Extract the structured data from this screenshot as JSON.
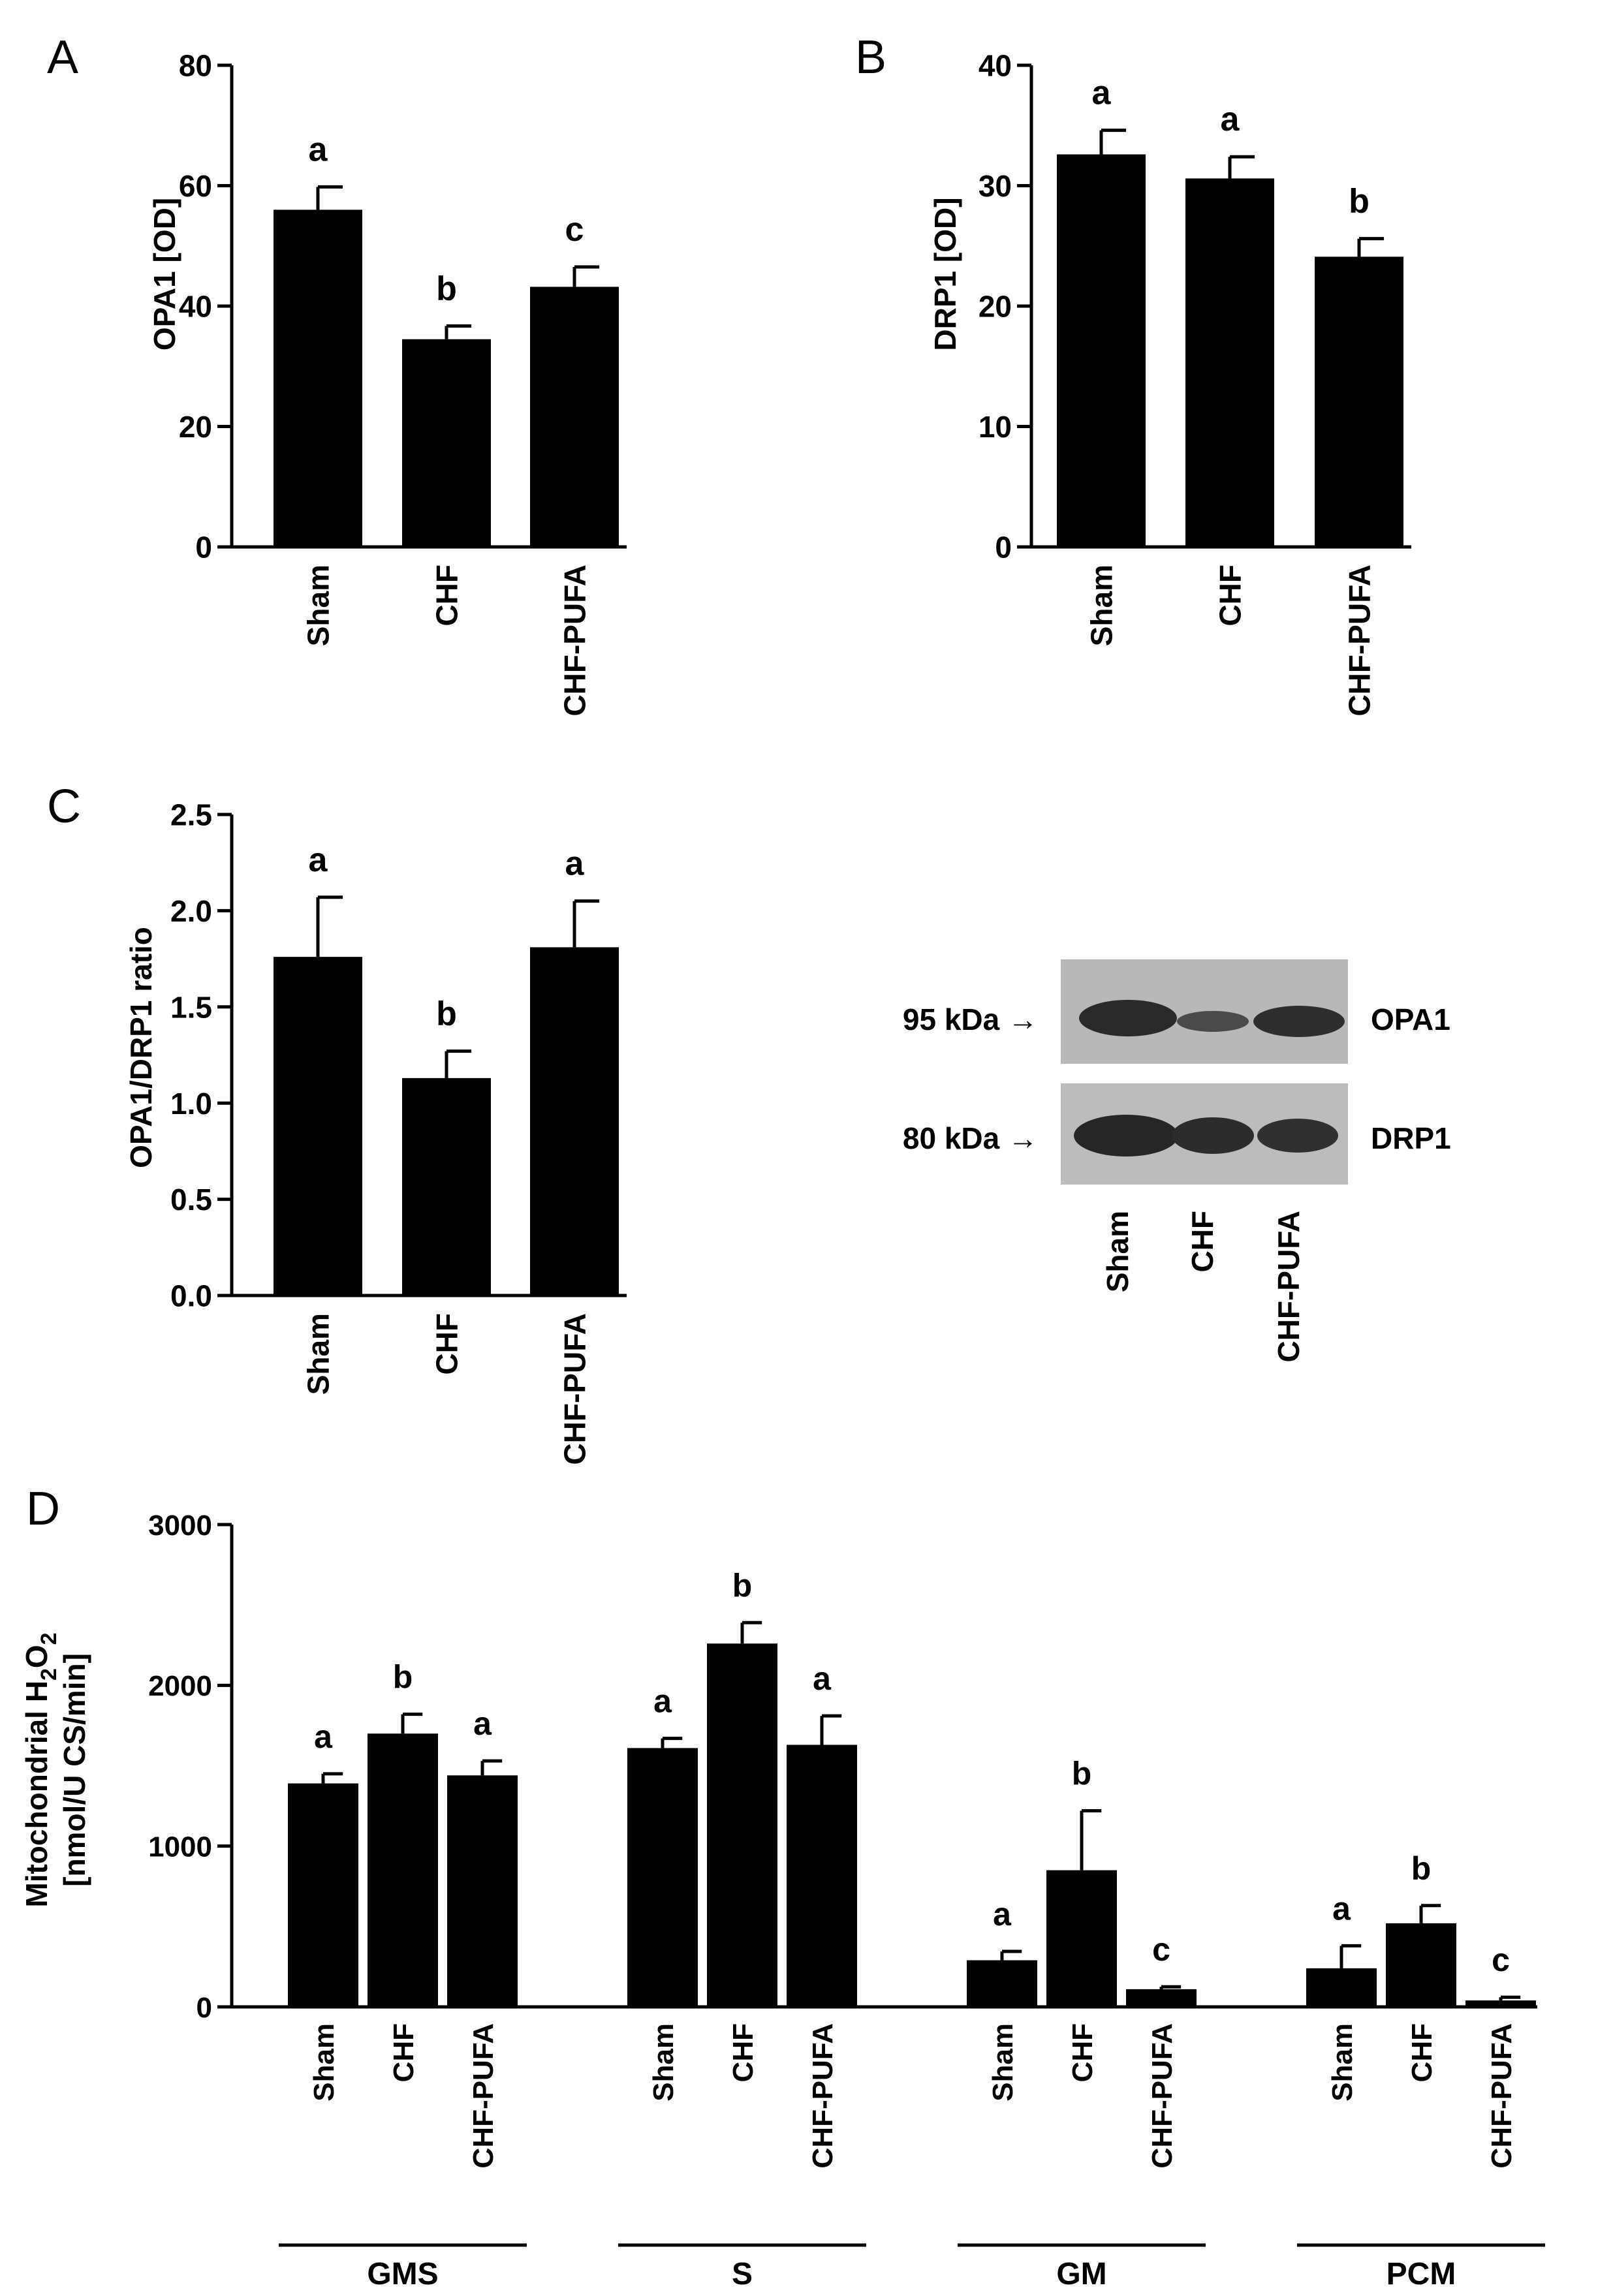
{
  "colors": {
    "bar": "#000000",
    "axis": "#000000",
    "background": "#ffffff",
    "blot_bg": "#b8b8b8",
    "band": "#2a2a2a"
  },
  "chart_data": [
    {
      "panel_label": "A",
      "type": "bar",
      "categories": [
        "Sham",
        "CHF",
        "CHF-PUFA"
      ],
      "values": [
        56,
        34.5,
        43.2
      ],
      "errors": [
        3.8,
        2.2,
        3.3
      ],
      "significance": [
        "a",
        "b",
        "c"
      ],
      "ylabel": "OPA1 [OD]",
      "ylim": [
        0,
        80
      ],
      "yticks": [
        "0",
        "20",
        "40",
        "60",
        "80"
      ],
      "grid": false
    },
    {
      "panel_label": "B",
      "type": "bar",
      "categories": [
        "Sham",
        "CHF",
        "CHF-PUFA"
      ],
      "values": [
        32.6,
        30.6,
        24.1
      ],
      "errors": [
        2.0,
        1.8,
        1.5
      ],
      "significance": [
        "a",
        "a",
        "b"
      ],
      "ylabel": "DRP1 [OD]",
      "ylim": [
        0,
        40
      ],
      "yticks": [
        "0",
        "10",
        "20",
        "30",
        "40"
      ],
      "grid": false
    },
    {
      "panel_label": "C",
      "type": "bar",
      "categories": [
        "Sham",
        "CHF",
        "CHF-PUFA"
      ],
      "values": [
        1.76,
        1.13,
        1.81
      ],
      "errors": [
        0.31,
        0.14,
        0.24
      ],
      "significance": [
        "a",
        "b",
        "a"
      ],
      "ylabel": "OPA1/DRP1 ratio",
      "ylim": [
        0,
        2.5
      ],
      "yticks": [
        "0.0",
        "0.5",
        "1.0",
        "1.5",
        "2.0",
        "2.5"
      ],
      "grid": false
    },
    {
      "panel_label": "D",
      "type": "bar",
      "groups": [
        "GMS",
        "S",
        "GM",
        "PCM"
      ],
      "categories": [
        "Sham",
        "CHF",
        "CHF-PUFA"
      ],
      "series": [
        {
          "group": "GMS",
          "values": [
            1390,
            1700,
            1440
          ],
          "errors": [
            60,
            120,
            90
          ],
          "significance": [
            "a",
            "b",
            "a"
          ]
        },
        {
          "group": "S",
          "values": [
            1610,
            2260,
            1630
          ],
          "errors": [
            60,
            130,
            180
          ],
          "significance": [
            "a",
            "b",
            "a"
          ]
        },
        {
          "group": "GM",
          "values": [
            290,
            850,
            110
          ],
          "errors": [
            55,
            370,
            15
          ],
          "significance": [
            "a",
            "b",
            "c"
          ]
        },
        {
          "group": "PCM",
          "values": [
            240,
            520,
            40
          ],
          "errors": [
            140,
            110,
            20
          ],
          "significance": [
            "a",
            "b",
            "c"
          ]
        }
      ],
      "ylabel_line1_pre": "Mitochondrial H",
      "ylabel_sub1": "2",
      "ylabel_mid": "O",
      "ylabel_sub2": "2",
      "ylabel_line2": "[nmol/U CS/min]",
      "ylim": [
        0,
        3000
      ],
      "yticks": [
        "0",
        "1000",
        "2000",
        "3000"
      ],
      "grid": false
    }
  ],
  "blot": {
    "markers": [
      "95 kDa →",
      "80 kDa →"
    ],
    "proteins": [
      "OPA1",
      "DRP1"
    ],
    "lanes": [
      "Sham",
      "CHF",
      "CHF-PUFA"
    ]
  }
}
